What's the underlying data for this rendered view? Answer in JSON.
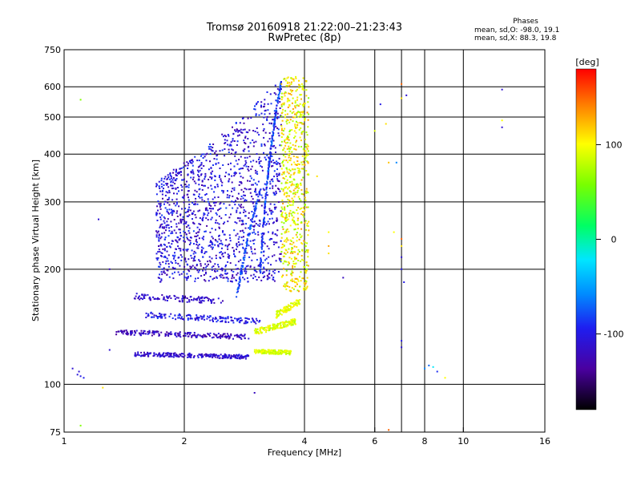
{
  "header": {
    "title_line1": "Tromsø 20160918 21:22:00–21:23:43",
    "title_line2": "RwPretec (8p)"
  },
  "phase_box": {
    "title": "Phases",
    "line_o": "mean, sd,O: -98.0, 19.1",
    "line_x": "mean, sd,X:  88.3, 19.8"
  },
  "colorbar": {
    "unit_label": "[deg]",
    "tick_labels": [
      "100",
      "0",
      "-100"
    ],
    "tick_values": [
      100,
      0,
      -100
    ],
    "range": [
      -180,
      180
    ]
  },
  "chart_data": {
    "type": "scatter",
    "xlabel": "Frequency [MHz]",
    "ylabel": "Stationary phase Virtual Height [km]",
    "x_scale": "log",
    "y_scale": "log",
    "xlim": [
      1,
      16
    ],
    "ylim": [
      75,
      750
    ],
    "x_ticks": [
      1,
      2,
      4,
      6,
      8,
      10,
      16
    ],
    "x_tick_labels": [
      "1",
      "2",
      "4",
      "6",
      "8",
      "10",
      "16"
    ],
    "x_grid": [
      2,
      4,
      6,
      7,
      8,
      10
    ],
    "y_ticks": [
      75,
      100,
      200,
      300,
      400,
      500,
      600,
      750
    ],
    "y_tick_labels": [
      "75",
      "100",
      "200",
      "300",
      "400",
      "500",
      "600",
      "750"
    ],
    "y_grid": [
      100,
      200,
      300,
      400,
      500,
      600
    ],
    "grid": true,
    "series": [
      {
        "role": "O-mode traces (phase ≈ -100°)",
        "points_sample": [
          [
            1.5,
            120
          ],
          [
            2.0,
            119
          ],
          [
            2.5,
            118
          ],
          [
            2.9,
            118
          ],
          [
            1.4,
            137
          ],
          [
            2.0,
            135
          ],
          [
            2.8,
            133
          ],
          [
            1.6,
            152
          ],
          [
            2.2,
            148
          ],
          [
            3.0,
            146
          ],
          [
            1.9,
            280
          ],
          [
            2.3,
            300
          ],
          [
            2.6,
            350
          ],
          [
            2.8,
            420
          ],
          [
            3.2,
            450
          ],
          [
            3.4,
            600
          ]
        ]
      },
      {
        "role": "X-mode traces (phase ≈ +90°)",
        "points_sample": [
          [
            3.0,
            122
          ],
          [
            3.4,
            121
          ],
          [
            3.7,
            121
          ],
          [
            3.1,
            137
          ],
          [
            3.5,
            143
          ],
          [
            3.8,
            150
          ],
          [
            3.6,
            200
          ],
          [
            3.8,
            250
          ],
          [
            3.9,
            300
          ],
          [
            3.7,
            380
          ],
          [
            4.0,
            500
          ],
          [
            4.1,
            600
          ]
        ]
      },
      {
        "role": "sparse echoes",
        "points_sample": [
          [
            1.05,
            110
          ],
          [
            1.1,
            105
          ],
          [
            6.4,
            480
          ],
          [
            6.8,
            380
          ],
          [
            7.0,
            240
          ],
          [
            7.2,
            570
          ],
          [
            8.0,
            110
          ],
          [
            8.3,
            112
          ],
          [
            12.5,
            590
          ],
          [
            12.5,
            470
          ]
        ]
      }
    ]
  }
}
